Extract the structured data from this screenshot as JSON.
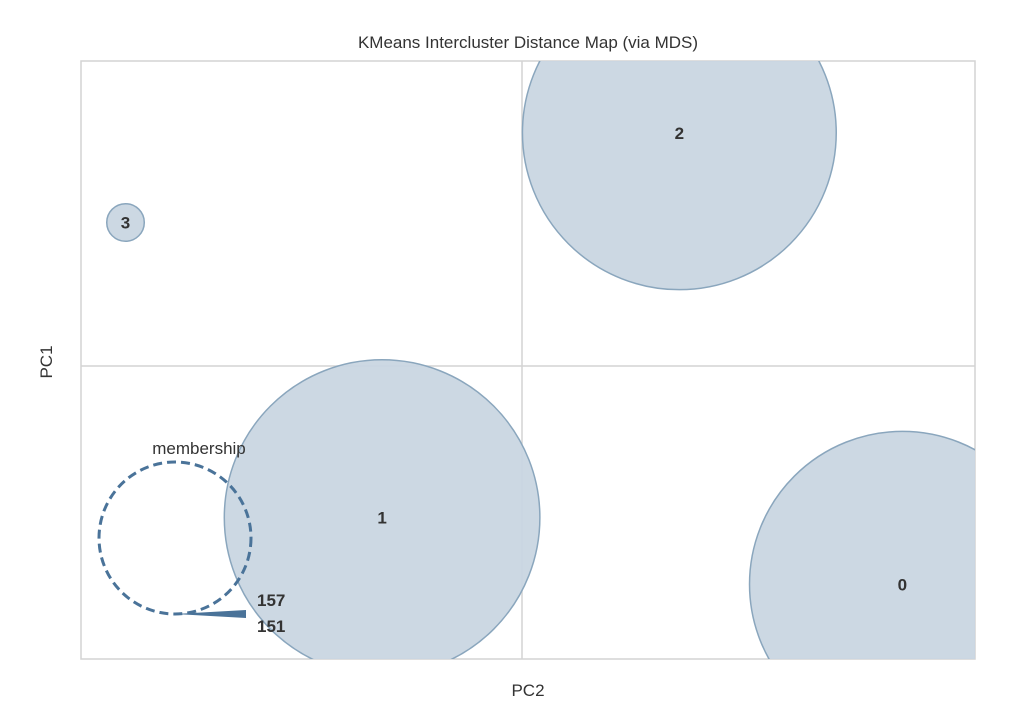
{
  "chart_data": {
    "type": "scatter",
    "title": "KMeans Intercluster Distance Map (via MDS)",
    "xlabel": "PC2",
    "ylabel": "PC1",
    "xlim": [
      -1,
      1
    ],
    "ylim": [
      -1,
      1
    ],
    "grid": true,
    "clusters": [
      {
        "label": "0",
        "x": 0.851,
        "y": -0.73,
        "r": 0.342
      },
      {
        "label": "1",
        "x": -0.313,
        "y": -0.507,
        "r": 0.353
      },
      {
        "label": "2",
        "x": 0.352,
        "y": 0.78,
        "r": 0.351
      },
      {
        "label": "3",
        "x": -0.887,
        "y": 0.48,
        "r": 0.042
      }
    ],
    "legend": {
      "title": "membership",
      "placement": "lower-left",
      "size_labels": [
        "157",
        "151"
      ]
    },
    "colors": {
      "fill": "#c9d6e1",
      "stroke": "#8aa6bd",
      "legend": "#4a7399",
      "grid": "#d3d3d3",
      "text": "#333333"
    }
  }
}
